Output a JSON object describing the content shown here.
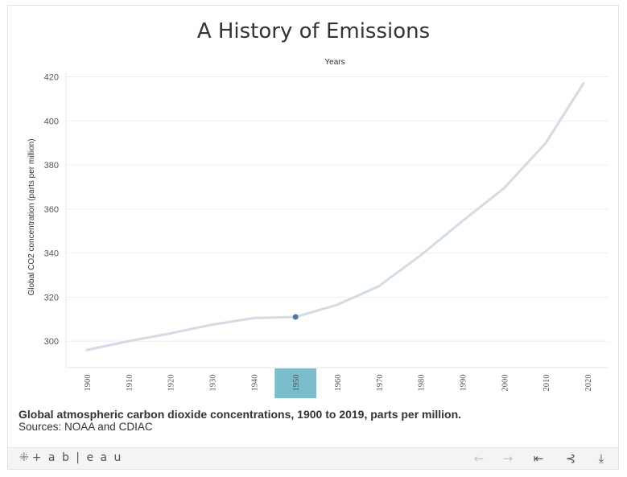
{
  "chart_data": {
    "type": "line",
    "title": "A History of Emissions",
    "top_axis_label": "Years",
    "ylabel": "Global CO2 concentration (parts per million)",
    "xlabel": "",
    "ylim": [
      288,
      422
    ],
    "xlim": [
      1895,
      2025
    ],
    "y_ticks": [
      300,
      320,
      340,
      360,
      380,
      400,
      420
    ],
    "x_ticks": [
      1900,
      1910,
      1920,
      1930,
      1940,
      1950,
      1960,
      1970,
      1980,
      1990,
      2000,
      2010,
      2020
    ],
    "highlighted_year": 1950,
    "highlight_color": "#7bbccd",
    "line_color": "#d3dce4",
    "marker_color": "#4e79a7",
    "series": [
      {
        "name": "CO2 concentration",
        "x": [
          1900,
          1910,
          1920,
          1930,
          1940,
          1950,
          1960,
          1970,
          1980,
          1990,
          2000,
          2010,
          2019
        ],
        "values": [
          296,
          300,
          303.5,
          307.5,
          310.5,
          311,
          316.5,
          325,
          339,
          354.5,
          369.5,
          390,
          417
        ]
      }
    ],
    "highlighted_point": {
      "x": 1950,
      "y": 311
    }
  },
  "caption": {
    "main": "Global atmospheric carbon dioxide concentrations, 1900 to 2019, parts per million.",
    "sources": "Sources: NOAA and CDIAC"
  },
  "toolbar": {
    "logo_text": "+ a b | e a u",
    "icons": [
      "undo-icon",
      "redo-icon",
      "revert-icon",
      "share-icon",
      "download-icon"
    ]
  }
}
